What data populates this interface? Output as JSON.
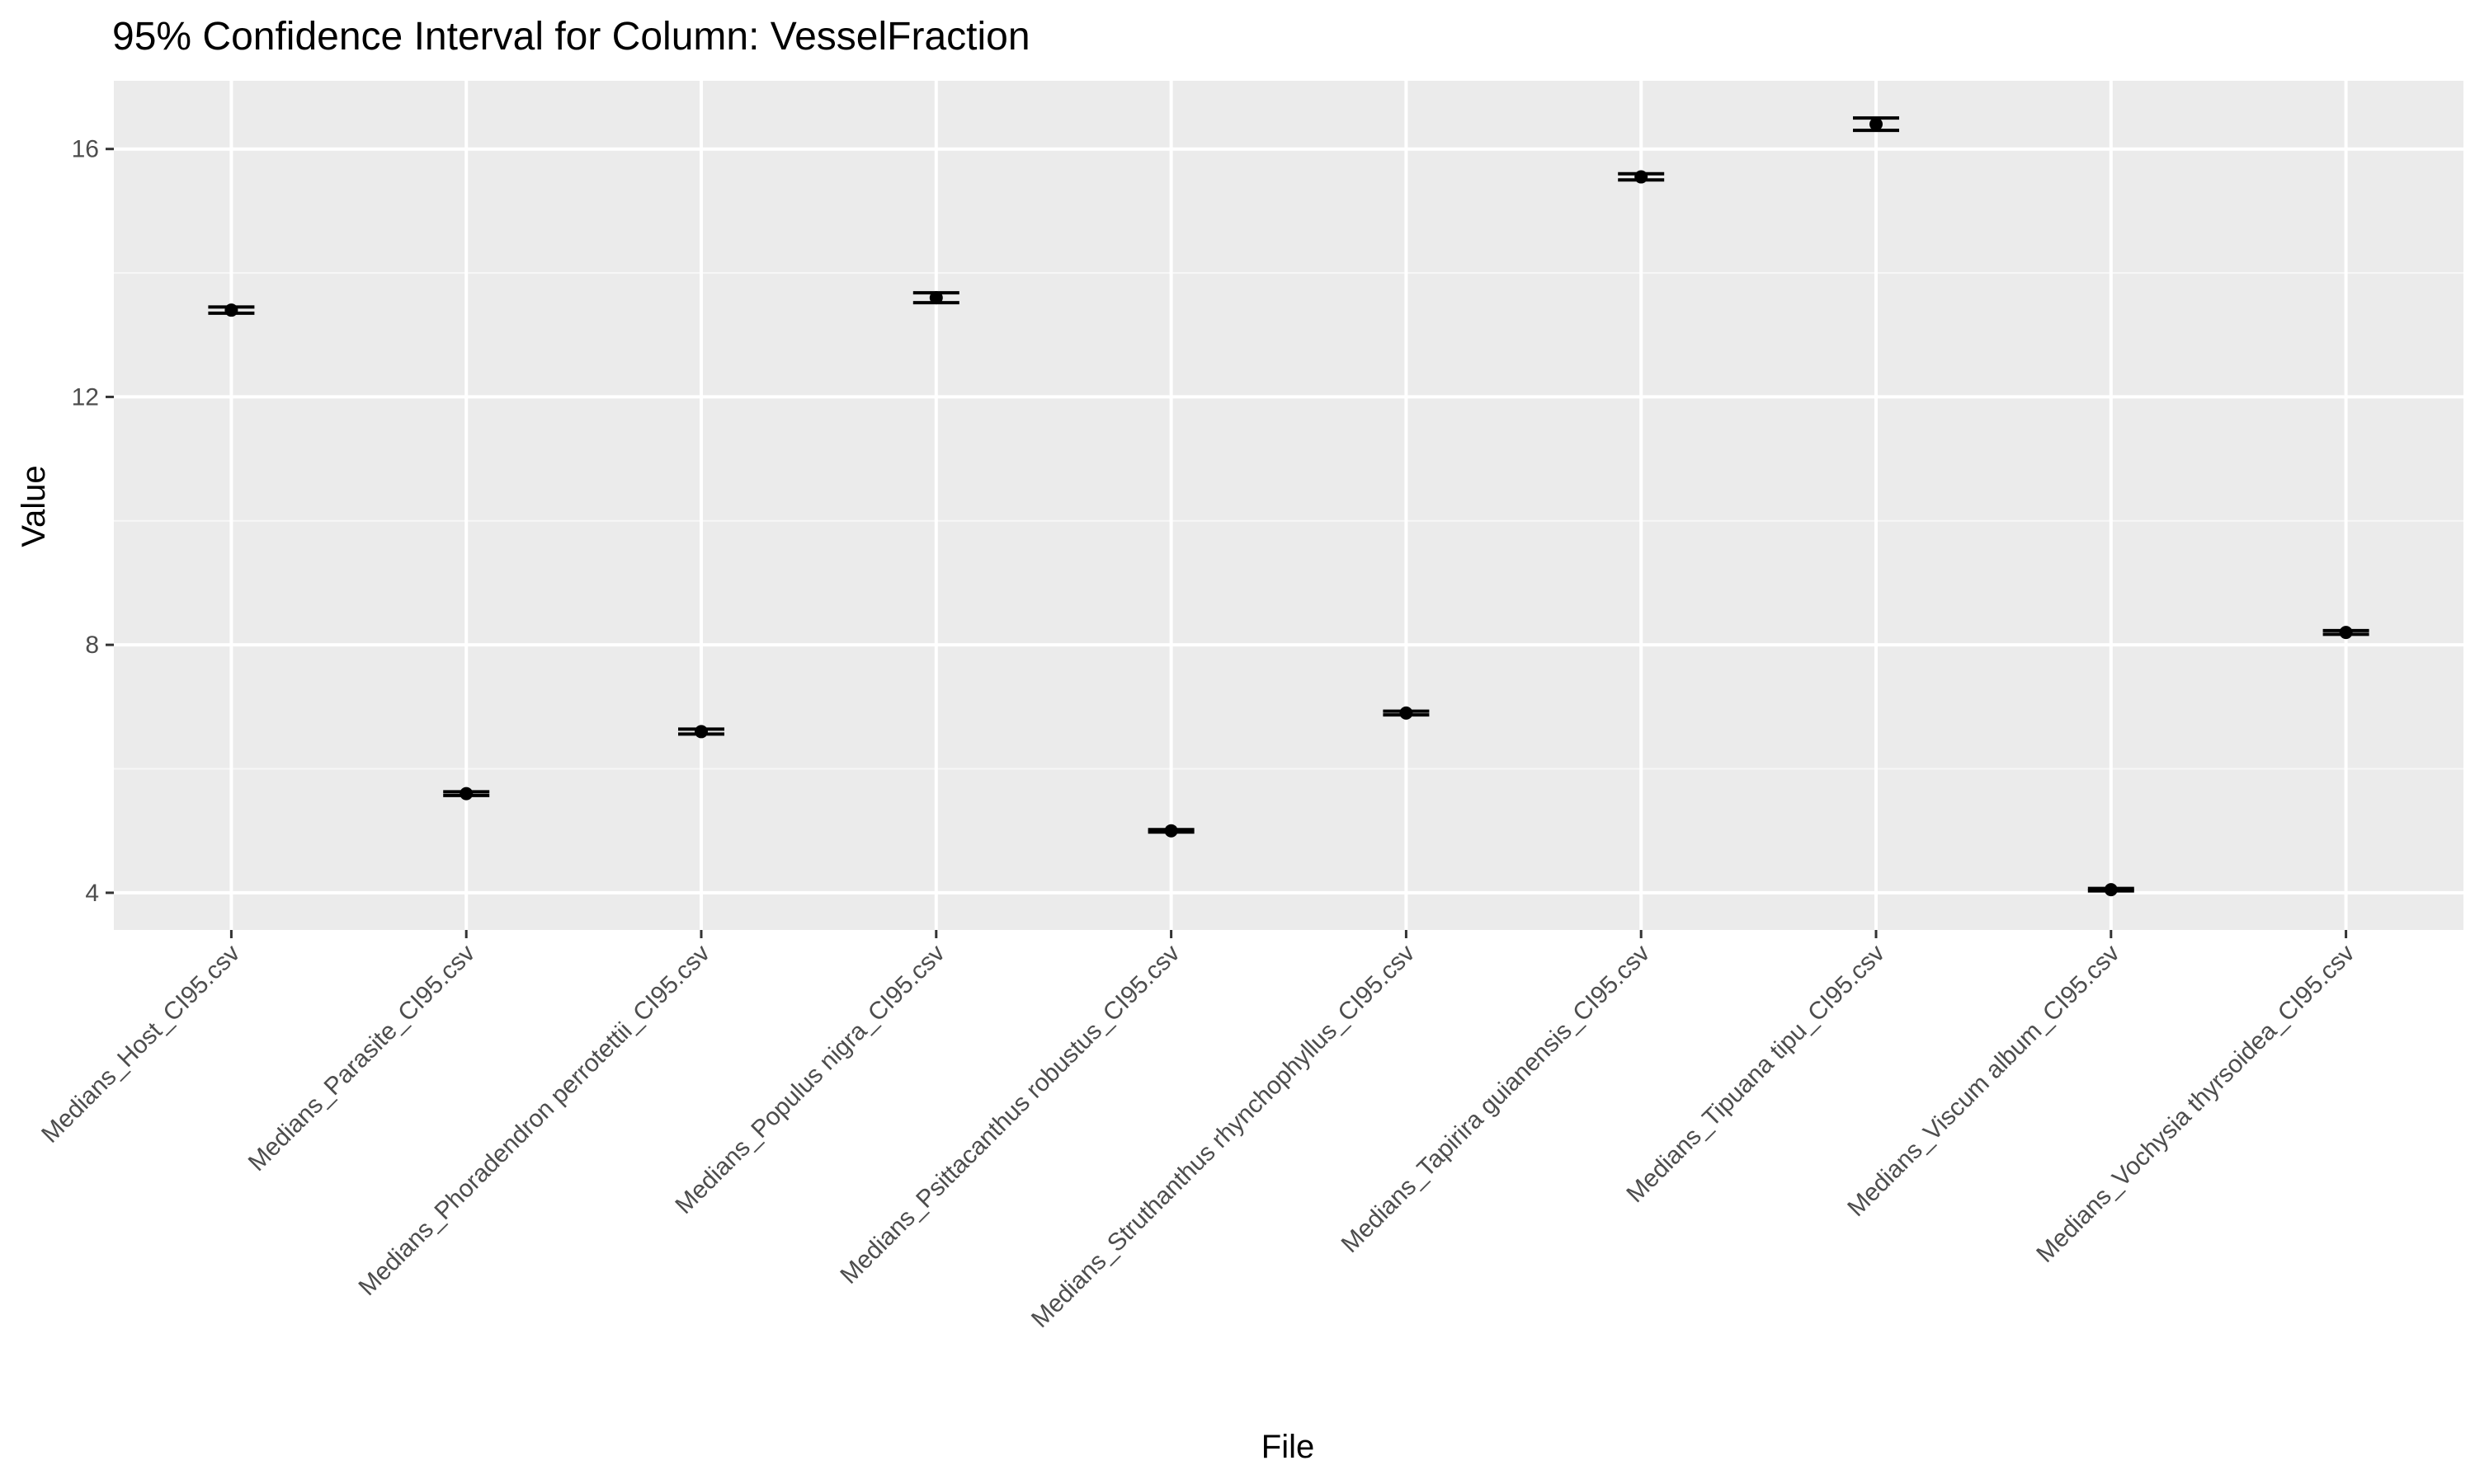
{
  "chart_data": {
    "type": "scatter",
    "subtype": "point-with-errorbar",
    "title": "95% Confidence Interval for Column: VesselFraction",
    "xlabel": "File",
    "ylabel": "Value",
    "ylim": [
      3.4,
      17.1
    ],
    "y_ticks": [
      4,
      8,
      12,
      16
    ],
    "grid": true,
    "legend": "none",
    "colors": {
      "panel_background": "#ebebeb",
      "grid_major": "#ffffff",
      "point": "#000000",
      "errorbar": "#000000",
      "tick_text": "#4d4d4d"
    },
    "categories": [
      "Medians_Host_CI95.csv",
      "Medians_Parasite_CI95.csv",
      "Medians_Phoradendron perrotettii_CI95.csv",
      "Medians_Populus nigra_CI95.csv",
      "Medians_Psittacanthus robustus_CI95.csv",
      "Medians_Struthanthus rhynchophyllus_CI95.csv",
      "Medians_Tapirira guianensis_CI95.csv",
      "Medians_Tipuana tipu_CI95.csv",
      "Medians_Viscum album_CI95.csv",
      "Medians_Vochysia thyrsoidea_CI95.csv"
    ],
    "values": [
      13.4,
      5.6,
      6.6,
      13.6,
      5.0,
      6.9,
      15.55,
      16.4,
      4.05,
      8.2
    ],
    "lower": [
      13.35,
      5.57,
      6.56,
      13.52,
      4.98,
      6.87,
      15.5,
      16.3,
      4.03,
      8.17
    ],
    "upper": [
      13.45,
      5.63,
      6.64,
      13.68,
      5.02,
      6.93,
      15.6,
      16.5,
      4.07,
      8.23
    ]
  }
}
